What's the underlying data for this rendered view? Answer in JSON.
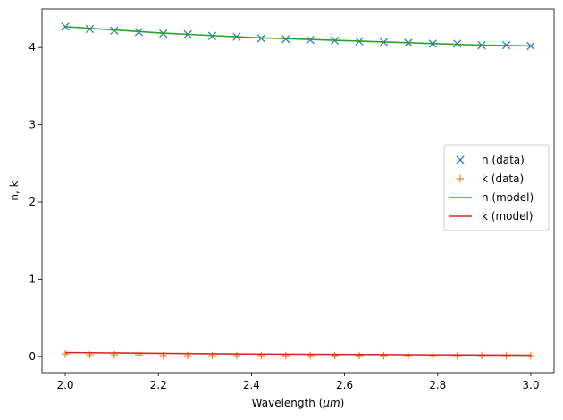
{
  "chart_data": {
    "type": "scatter",
    "xlabel": "Wavelength",
    "xlabel_unit": "μm",
    "ylabel": "n, k",
    "xlim": [
      1.95,
      3.05
    ],
    "ylim": [
      -0.21,
      4.5
    ],
    "xticks": [
      2.0,
      2.2,
      2.4,
      2.6,
      2.8,
      3.0
    ],
    "xtick_labels": [
      "2.0",
      "2.2",
      "2.4",
      "2.6",
      "2.8",
      "3.0"
    ],
    "yticks": [
      0,
      1,
      2,
      3,
      4
    ],
    "ytick_labels": [
      "0",
      "1",
      "2",
      "3",
      "4"
    ],
    "grid": false,
    "legend_position": "right",
    "series": [
      {
        "name": "n (data)",
        "kind": "marker",
        "marker": "x",
        "color": "#1f77b4",
        "x": [
          2.0,
          2.0526,
          2.1053,
          2.1579,
          2.2105,
          2.2632,
          2.3158,
          2.3684,
          2.4211,
          2.4737,
          2.5263,
          2.5789,
          2.6316,
          2.6842,
          2.7368,
          2.7895,
          2.8421,
          2.8947,
          2.9474,
          3.0
        ],
        "y": [
          4.27,
          4.24,
          4.22,
          4.2,
          4.18,
          4.17,
          4.15,
          4.14,
          4.12,
          4.11,
          4.1,
          4.09,
          4.08,
          4.07,
          4.06,
          4.05,
          4.05,
          4.03,
          4.03,
          4.02
        ]
      },
      {
        "name": "k (data)",
        "kind": "marker",
        "marker": "+",
        "color": "#ff7f0e",
        "x": [
          2.0,
          2.0526,
          2.1053,
          2.1579,
          2.2105,
          2.2632,
          2.3158,
          2.3684,
          2.4211,
          2.4737,
          2.5263,
          2.5789,
          2.6316,
          2.6842,
          2.7368,
          2.7895,
          2.8421,
          2.8947,
          2.9474,
          3.0
        ],
        "y": [
          0.03,
          0.02,
          0.02,
          0.02,
          0.01,
          0.01,
          0.01,
          0.01,
          0.01,
          0.01,
          0.01,
          0.01,
          0.01,
          0.01,
          0.01,
          0.01,
          0.01,
          0.01,
          0.01,
          0.01
        ]
      },
      {
        "name": "n (model)",
        "kind": "line",
        "color": "#2ca02c",
        "x": [
          2.0,
          2.1,
          2.2,
          2.3,
          2.4,
          2.5,
          2.6,
          2.7,
          2.8,
          2.9,
          3.0
        ],
        "y": [
          4.27,
          4.23,
          4.19,
          4.16,
          4.13,
          4.11,
          4.09,
          4.07,
          4.05,
          4.03,
          4.02
        ]
      },
      {
        "name": "k (model)",
        "kind": "line",
        "color": "#d62728",
        "x": [
          2.0,
          2.2,
          2.4,
          2.6,
          2.8,
          3.0
        ],
        "y": [
          0.05,
          0.04,
          0.03,
          0.025,
          0.02,
          0.015
        ]
      }
    ]
  }
}
